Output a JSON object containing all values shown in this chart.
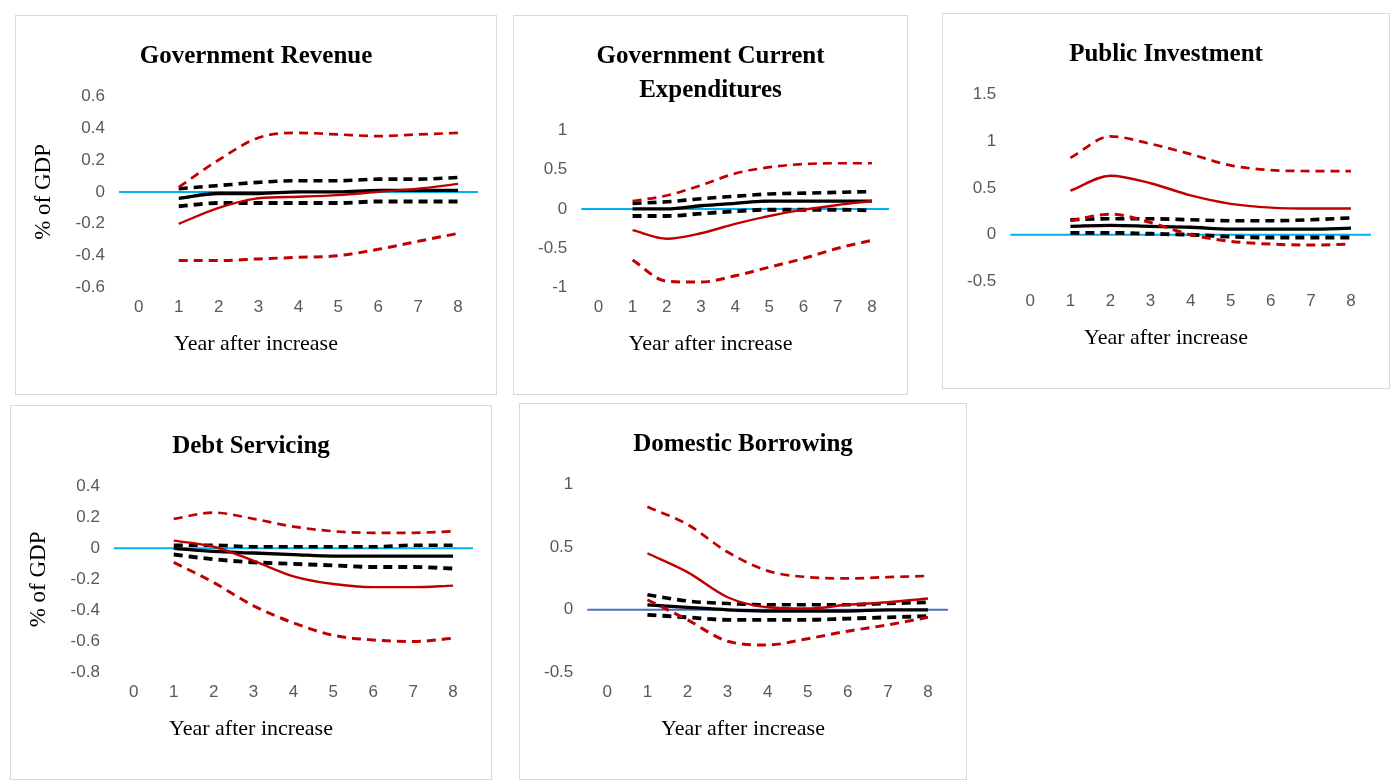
{
  "chart_data": [
    {
      "type": "line",
      "title": "Government Revenue",
      "xlabel": "Year after increase",
      "ylabel": "% of GDP",
      "categories": [
        "0",
        "1",
        "2",
        "3",
        "4",
        "5",
        "6",
        "7",
        "8"
      ],
      "ylim": [
        -0.6,
        0.6
      ],
      "yticks": [
        -0.6,
        -0.4,
        -0.2,
        0,
        0.2,
        0.4,
        0.6
      ],
      "grid": false,
      "legend": false,
      "ref_lines": [
        {
          "axis": "y",
          "value": 0,
          "color": "#00b0f0"
        }
      ],
      "series": [
        {
          "color": "#c00000",
          "line_style": "solid",
          "values": [
            null,
            -0.2,
            -0.1,
            -0.04,
            -0.03,
            -0.02,
            0,
            0.02,
            0.05
          ]
        },
        {
          "color": "#c00000",
          "line_style": "dashed",
          "values": [
            null,
            0.03,
            0.2,
            0.34,
            0.37,
            0.36,
            0.35,
            0.36,
            0.37
          ]
        },
        {
          "color": "#c00000",
          "line_style": "dashed",
          "values": [
            null,
            -0.43,
            -0.43,
            -0.42,
            -0.41,
            -0.4,
            -0.36,
            -0.31,
            -0.26
          ]
        },
        {
          "color": "#000000",
          "line_style": "solid",
          "values": [
            null,
            -0.04,
            -0.01,
            -0.01,
            0,
            0,
            0.01,
            0.01,
            0.01
          ]
        },
        {
          "color": "#000000",
          "line_style": "dashed",
          "values": [
            null,
            0.02,
            0.04,
            0.06,
            0.07,
            0.07,
            0.08,
            0.08,
            0.09
          ]
        },
        {
          "color": "#000000",
          "line_style": "dashed",
          "values": [
            null,
            -0.09,
            -0.07,
            -0.07,
            -0.07,
            -0.07,
            -0.06,
            -0.06,
            -0.06
          ]
        }
      ]
    },
    {
      "type": "line",
      "title": "Government Current Expenditures",
      "xlabel": "Year after increase",
      "categories": [
        "0",
        "1",
        "2",
        "3",
        "4",
        "5",
        "6",
        "7",
        "8"
      ],
      "ylim": [
        -1,
        1
      ],
      "yticks": [
        -1,
        -0.5,
        0,
        0.5,
        1
      ],
      "grid": false,
      "legend": false,
      "ref_lines": [
        {
          "axis": "y",
          "value": 0,
          "color": "#00b0f0"
        }
      ],
      "series": [
        {
          "color": "#c00000",
          "line_style": "solid",
          "values": [
            null,
            -0.27,
            -0.38,
            -0.31,
            -0.19,
            -0.09,
            -0.01,
            0.05,
            0.1
          ]
        },
        {
          "color": "#c00000",
          "line_style": "dashed",
          "values": [
            null,
            0.1,
            0.17,
            0.3,
            0.45,
            0.53,
            0.57,
            0.58,
            0.58
          ]
        },
        {
          "color": "#c00000",
          "line_style": "dashed",
          "values": [
            null,
            -0.65,
            -0.92,
            -0.93,
            -0.85,
            -0.74,
            -0.63,
            -0.5,
            -0.4
          ]
        },
        {
          "color": "#000000",
          "line_style": "solid",
          "values": [
            null,
            0,
            0,
            0.04,
            0.07,
            0.1,
            0.1,
            0.1,
            0.1
          ]
        },
        {
          "color": "#000000",
          "line_style": "dashed",
          "values": [
            null,
            0.07,
            0.09,
            0.13,
            0.16,
            0.19,
            0.2,
            0.21,
            0.22
          ]
        },
        {
          "color": "#000000",
          "line_style": "dashed",
          "values": [
            null,
            -0.09,
            -0.09,
            -0.06,
            -0.03,
            -0.01,
            -0.01,
            -0.01,
            -0.02
          ]
        }
      ]
    },
    {
      "type": "line",
      "title": "Public Investment",
      "xlabel": "Year after increase",
      "categories": [
        "0",
        "1",
        "2",
        "3",
        "4",
        "5",
        "6",
        "7",
        "8"
      ],
      "ylim": [
        -0.5,
        1.5
      ],
      "yticks": [
        -0.5,
        0,
        0.5,
        1,
        1.5
      ],
      "grid": false,
      "legend": false,
      "ref_lines": [
        {
          "axis": "y",
          "value": 0,
          "color": "#00b0f0"
        }
      ],
      "series": [
        {
          "color": "#c00000",
          "line_style": "solid",
          "values": [
            null,
            0.47,
            0.63,
            0.55,
            0.42,
            0.33,
            0.29,
            0.28,
            0.28
          ]
        },
        {
          "color": "#c00000",
          "line_style": "dashed",
          "values": [
            null,
            0.82,
            1.05,
            0.97,
            0.86,
            0.74,
            0.69,
            0.68,
            0.68
          ]
        },
        {
          "color": "#c00000",
          "line_style": "dashed",
          "values": [
            null,
            0.15,
            0.22,
            0.13,
            0,
            -0.07,
            -0.1,
            -0.11,
            -0.1
          ]
        },
        {
          "color": "#000000",
          "line_style": "solid",
          "values": [
            null,
            0.09,
            0.1,
            0.09,
            0.08,
            0.06,
            0.06,
            0.06,
            0.07
          ]
        },
        {
          "color": "#000000",
          "line_style": "dashed",
          "values": [
            null,
            0.16,
            0.17,
            0.17,
            0.16,
            0.15,
            0.15,
            0.16,
            0.18
          ]
        },
        {
          "color": "#000000",
          "line_style": "dashed",
          "values": [
            null,
            0.02,
            0.02,
            0.01,
            0,
            -0.02,
            -0.03,
            -0.03,
            -0.03
          ]
        }
      ]
    },
    {
      "type": "line",
      "title": "Debt Servicing",
      "xlabel": "Year after increase",
      "ylabel": "% of GDP",
      "categories": [
        "0",
        "1",
        "2",
        "3",
        "4",
        "5",
        "6",
        "7",
        "8"
      ],
      "ylim": [
        -0.8,
        0.4
      ],
      "yticks": [
        -0.8,
        -0.6,
        -0.4,
        -0.2,
        0,
        0.2,
        0.4
      ],
      "grid": false,
      "legend": false,
      "ref_lines": [
        {
          "axis": "y",
          "value": 0,
          "color": "#00b0f0"
        }
      ],
      "series": [
        {
          "color": "#c00000",
          "line_style": "solid",
          "values": [
            null,
            0.05,
            0.01,
            -0.08,
            -0.18,
            -0.23,
            -0.25,
            -0.25,
            -0.24
          ]
        },
        {
          "color": "#c00000",
          "line_style": "dashed",
          "values": [
            null,
            0.19,
            0.23,
            0.19,
            0.14,
            0.11,
            0.1,
            0.1,
            0.11
          ]
        },
        {
          "color": "#c00000",
          "line_style": "dashed",
          "values": [
            null,
            -0.09,
            -0.22,
            -0.37,
            -0.48,
            -0.56,
            -0.59,
            -0.6,
            -0.58
          ]
        },
        {
          "color": "#000000",
          "line_style": "solid",
          "values": [
            null,
            0,
            -0.02,
            -0.03,
            -0.04,
            -0.05,
            -0.05,
            -0.05,
            -0.05
          ]
        },
        {
          "color": "#000000",
          "line_style": "dashed",
          "values": [
            null,
            0.02,
            0.02,
            0.01,
            0.01,
            0.01,
            0.01,
            0.02,
            0.02
          ]
        },
        {
          "color": "#000000",
          "line_style": "dashed",
          "values": [
            null,
            -0.04,
            -0.07,
            -0.09,
            -0.1,
            -0.11,
            -0.12,
            -0.12,
            -0.13
          ]
        }
      ]
    },
    {
      "type": "line",
      "title": "Domestic Borrowing",
      "xlabel": "Year after increase",
      "categories": [
        "0",
        "1",
        "2",
        "3",
        "4",
        "5",
        "6",
        "7",
        "8"
      ],
      "ylim": [
        -0.5,
        1
      ],
      "yticks": [
        -0.5,
        0,
        0.5,
        1
      ],
      "grid": false,
      "legend": false,
      "ref_lines": [
        {
          "axis": "y",
          "value": 0,
          "color": "#4472c4"
        }
      ],
      "series": [
        {
          "color": "#c00000",
          "line_style": "solid",
          "values": [
            null,
            0.45,
            0.3,
            0.1,
            0.02,
            0.01,
            0.04,
            0.06,
            0.09
          ]
        },
        {
          "color": "#c00000",
          "line_style": "dashed",
          "values": [
            null,
            0.82,
            0.68,
            0.46,
            0.31,
            0.26,
            0.25,
            0.26,
            0.27
          ]
        },
        {
          "color": "#c00000",
          "line_style": "dashed",
          "values": [
            null,
            0.08,
            -0.08,
            -0.25,
            -0.28,
            -0.23,
            -0.17,
            -0.12,
            -0.06
          ]
        },
        {
          "color": "#000000",
          "line_style": "solid",
          "values": [
            null,
            0.04,
            0.02,
            0,
            -0.01,
            -0.01,
            -0.01,
            0,
            0
          ]
        },
        {
          "color": "#000000",
          "line_style": "dashed",
          "values": [
            null,
            0.12,
            0.07,
            0.05,
            0.04,
            0.04,
            0.04,
            0.05,
            0.06
          ]
        },
        {
          "color": "#000000",
          "line_style": "dashed",
          "values": [
            null,
            -0.04,
            -0.06,
            -0.08,
            -0.08,
            -0.08,
            -0.07,
            -0.06,
            -0.05
          ]
        }
      ]
    }
  ]
}
